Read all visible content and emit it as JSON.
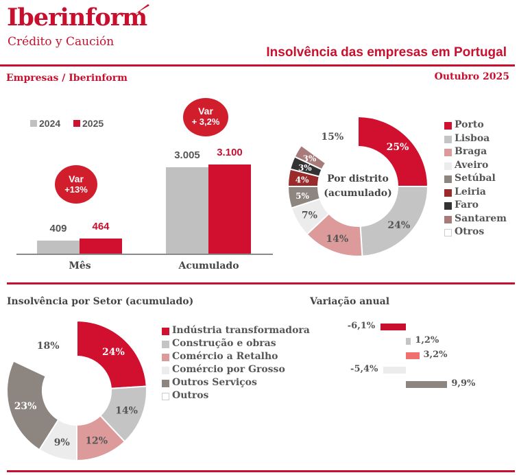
{
  "header": {
    "brand": "Iberinform",
    "tagline": "Crédito y Caución",
    "title": "Insolvência das empresas em Portugal",
    "subtitle_left": "Empresas / Iberinform",
    "subtitle_right": "Outubro 2025"
  },
  "colors": {
    "brand_red": "#c8102e",
    "gray_2024": "#c0c0c0",
    "red_2025": "#d0102e"
  },
  "chart_data": [
    {
      "type": "bar",
      "categories": [
        "Mês",
        "Acumulado"
      ],
      "series": [
        {
          "name": "2024",
          "values": [
            409,
            3005
          ],
          "labels": [
            "409",
            "3.005"
          ]
        },
        {
          "name": "2025",
          "values": [
            464,
            3100
          ],
          "labels": [
            "464",
            "3.100"
          ]
        }
      ],
      "annotations": [
        {
          "line1": "Var",
          "line2": "+13%"
        },
        {
          "line1": "Var",
          "line2": "+ 3,2%"
        }
      ],
      "legend_position": "top-left"
    },
    {
      "type": "pie",
      "center_label_1": "Por distrito",
      "center_label_2": "(acumulado)",
      "slices": [
        {
          "name": "Porto",
          "value": 25,
          "label": "25%",
          "color": "#d0102e"
        },
        {
          "name": "Lisboa",
          "value": 24,
          "label": "24%",
          "color": "#c4c4c4"
        },
        {
          "name": "Braga",
          "value": 14,
          "label": "14%",
          "color": "#dc9a9a"
        },
        {
          "name": "Aveiro",
          "value": 7,
          "label": "7%",
          "color": "#ececec"
        },
        {
          "name": "Setúbal",
          "value": 5,
          "label": "5%",
          "color": "#8d8580"
        },
        {
          "name": "Leiria",
          "value": 4,
          "label": "4%",
          "color": "#9b2a2a"
        },
        {
          "name": "Faro",
          "value": 3,
          "label": "3%",
          "color": "#333333"
        },
        {
          "name": "Santarem",
          "value": 3,
          "label": "3%",
          "color": "#a87a7a"
        },
        {
          "name": "Otros",
          "value": 15,
          "label": "15%",
          "color": "#ffffff"
        }
      ],
      "legend_position": "right"
    },
    {
      "type": "pie",
      "title": "Insolvência por Setor (acumulado)",
      "slices": [
        {
          "name": "Indústria transformadora",
          "value": 24,
          "label": "24%",
          "color": "#d0102e"
        },
        {
          "name": "Construção e obras",
          "value": 14,
          "label": "14%",
          "color": "#c4c4c4"
        },
        {
          "name": "Comércio a Retalho",
          "value": 12,
          "label": "12%",
          "color": "#dc9a9a"
        },
        {
          "name": "Comércio por Grosso",
          "value": 9,
          "label": "9%",
          "color": "#ececec"
        },
        {
          "name": "Outros Serviços",
          "value": 23,
          "label": "23%",
          "color": "#8d8580"
        },
        {
          "name": "Outros",
          "value": 18,
          "label": "18%",
          "color": "#ffffff"
        }
      ],
      "legend_position": "right"
    },
    {
      "type": "bar",
      "title": "Variação anual",
      "orientation": "horizontal",
      "values": [
        -6.1,
        1.2,
        3.2,
        -5.4,
        9.9
      ],
      "labels": [
        "-6,1%",
        "1,2%",
        "3,2%",
        "-5,4%",
        "9,9%"
      ],
      "colors": [
        "#c8102e",
        "#c4c4c4",
        "#f07070",
        "#ececec",
        "#8d8580"
      ]
    }
  ]
}
